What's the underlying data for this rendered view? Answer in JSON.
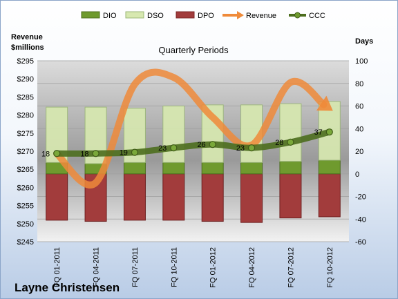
{
  "chart_data": {
    "type": "bar",
    "title": "Quarterly Periods",
    "categories": [
      "FQ 01-2011",
      "FQ 04-2011",
      "FQ 07-2011",
      "FQ 10-2011",
      "FQ 01-2012",
      "FQ 04-2012",
      "FQ 07-2012",
      "FQ 10-2012"
    ],
    "left_axis": {
      "title_line1": "Revenue",
      "title_line2": "$millions",
      "range": [
        245,
        295
      ],
      "step": 5,
      "tick_labels": [
        "$295",
        "$290",
        "$285",
        "$280",
        "$275",
        "$270",
        "$265",
        "$260",
        "$255",
        "$250",
        "$245"
      ]
    },
    "right_axis": {
      "title": "Days",
      "range": [
        -60,
        100
      ],
      "step": 20,
      "tick_labels": [
        "100",
        "80",
        "60",
        "40",
        "20",
        "0",
        "-20",
        "-40",
        "-60"
      ]
    },
    "series": [
      {
        "name": "DIO",
        "type": "bar",
        "axis": "right",
        "color": "#6f9a2e",
        "values": [
          10,
          9,
          10,
          10,
          10,
          10,
          11,
          12
        ]
      },
      {
        "name": "DSO",
        "type": "bar",
        "axis": "right",
        "color": "#d7e8b0",
        "values": [
          49,
          50,
          48,
          50,
          51,
          51,
          51,
          52
        ]
      },
      {
        "name": "DPO",
        "type": "bar",
        "axis": "right",
        "color": "#a23c3c",
        "values": [
          -41,
          -42,
          -41,
          -41,
          -42,
          -43,
          -39,
          -38
        ]
      },
      {
        "name": "Revenue",
        "type": "line",
        "axis": "left",
        "color": "#ef8a3a",
        "values": [
          269.3,
          261.3,
          288.5,
          290.4,
          279.4,
          271.7,
          289.0,
          281.8
        ]
      },
      {
        "name": "CCC",
        "type": "line",
        "axis": "right",
        "color": "#4d6e1e",
        "values": [
          18,
          18,
          19,
          23,
          26,
          23,
          28,
          37
        ]
      }
    ],
    "ccc_labels": [
      "18",
      "18",
      "19",
      "23",
      "26",
      "23",
      "28",
      "37"
    ],
    "grid": true,
    "legend": "top"
  },
  "footer": {
    "author": "Layne Christensen"
  }
}
